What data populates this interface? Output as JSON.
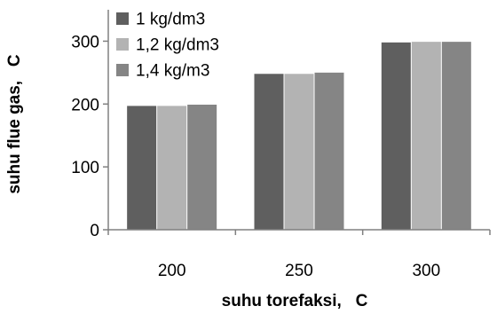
{
  "chart_data": {
    "type": "bar",
    "xlabel": "suhu torefaksi,   C",
    "ylabel": "suhu flue gas,   C",
    "categories": [
      "200",
      "250",
      "300"
    ],
    "ylim": [
      0,
      350
    ],
    "yticks": [
      0,
      100,
      200,
      300
    ],
    "grid": false,
    "legend_position": "top-left",
    "series": [
      {
        "name": "1 kg/dm3",
        "values": [
          197,
          248,
          298
        ],
        "color": "#5f5f5f"
      },
      {
        "name": "1,2 kg/dm3",
        "values": [
          197,
          248,
          299
        ],
        "color": "#b3b3b3"
      },
      {
        "name": "1,4 kg/m3",
        "values": [
          199,
          250,
          299
        ],
        "color": "#858585"
      }
    ]
  }
}
